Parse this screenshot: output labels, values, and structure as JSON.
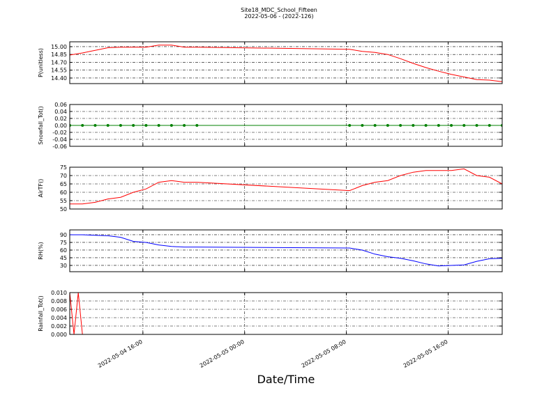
{
  "chart_data": [
    {
      "type": "line",
      "title": "Site18_MDC_School_Fifteen",
      "subtitle": "2022-05-06 - (2022-126)",
      "ylabel": "P(unitless)",
      "color": "#ff0000",
      "x": [
        "2022-05-04 10:15",
        "2022-05-04 11:15",
        "2022-05-04 12:15",
        "2022-05-04 13:15",
        "2022-05-04 14:15",
        "2022-05-04 15:15",
        "2022-05-04 16:15",
        "2022-05-04 17:15",
        "2022-05-04 18:15",
        "2022-05-04 19:15",
        "2022-05-04 20:15",
        "2022-05-05 08:15",
        "2022-05-05 09:15",
        "2022-05-05 10:15",
        "2022-05-05 11:15",
        "2022-05-05 12:15",
        "2022-05-05 13:15",
        "2022-05-05 14:15",
        "2022-05-05 15:15",
        "2022-05-05 16:15",
        "2022-05-05 17:15",
        "2022-05-05 18:15",
        "2022-05-05 19:15",
        "2022-05-05 20:15"
      ],
      "values": [
        14.84,
        14.88,
        14.93,
        14.98,
        14.99,
        14.99,
        14.99,
        15.03,
        15.03,
        14.99,
        14.99,
        14.95,
        14.91,
        14.89,
        14.85,
        14.77,
        14.68,
        14.6,
        14.53,
        14.47,
        14.42,
        14.37,
        14.36,
        14.33
      ],
      "xlim": [
        "2022-05-04 10:15",
        "2022-05-05 20:15"
      ],
      "xticks": [
        "2022-05-04 16:00",
        "2022-05-05 00:00",
        "2022-05-05 08:00",
        "2022-05-05 16:00"
      ],
      "ylim": [
        14.293,
        15.093
      ],
      "yticks": [
        {
          "value": 14.4,
          "label": "14.40"
        },
        {
          "value": 14.55,
          "label": "14.55"
        },
        {
          "value": 14.7,
          "label": "14.70"
        },
        {
          "value": 14.85,
          "label": "14.85"
        },
        {
          "value": 15.0,
          "label": "15.00"
        }
      ],
      "grid": true
    },
    {
      "type": "line",
      "ylabel": "Snowfall_Tot()",
      "color": "#008000",
      "marker": "o",
      "x": [
        "2022-05-04 10:15",
        "2022-05-04 11:15",
        "2022-05-04 12:15",
        "2022-05-04 13:15",
        "2022-05-04 14:15",
        "2022-05-04 15:15",
        "2022-05-04 16:15",
        "2022-05-04 17:15",
        "2022-05-04 18:15",
        "2022-05-04 19:15",
        "2022-05-04 20:15",
        "2022-05-05 08:15",
        "2022-05-05 09:15",
        "2022-05-05 10:15",
        "2022-05-05 11:15",
        "2022-05-05 12:15",
        "2022-05-05 13:15",
        "2022-05-05 14:15",
        "2022-05-05 15:15",
        "2022-05-05 16:15",
        "2022-05-05 17:15",
        "2022-05-05 18:15",
        "2022-05-05 19:15",
        "2022-05-05 20:15"
      ],
      "values": [
        0,
        0,
        0,
        0,
        0,
        0,
        0,
        0,
        0,
        0,
        0,
        0,
        0,
        0,
        0,
        0,
        0,
        0,
        0,
        0,
        0,
        0,
        0,
        0
      ],
      "xlim": [
        "2022-05-04 10:15",
        "2022-05-05 20:15"
      ],
      "xticks": [
        "2022-05-04 16:00",
        "2022-05-05 00:00",
        "2022-05-05 08:00",
        "2022-05-05 16:00"
      ],
      "ylim": [
        -0.06,
        0.06
      ],
      "yticks": [
        {
          "value": -0.06,
          "label": "-0.06"
        },
        {
          "value": -0.04,
          "label": "-0.04"
        },
        {
          "value": -0.02,
          "label": "-0.02"
        },
        {
          "value": 0,
          "label": "0.00"
        },
        {
          "value": 0.02,
          "label": "0.02"
        },
        {
          "value": 0.04,
          "label": "0.04"
        },
        {
          "value": 0.06,
          "label": "0.06"
        }
      ],
      "grid": true
    },
    {
      "type": "line",
      "ylabel": "AirTF()",
      "color": "#ff0000",
      "x": [
        "2022-05-04 10:15",
        "2022-05-04 11:15",
        "2022-05-04 12:15",
        "2022-05-04 13:15",
        "2022-05-04 14:15",
        "2022-05-04 15:15",
        "2022-05-04 16:15",
        "2022-05-04 17:15",
        "2022-05-04 18:15",
        "2022-05-04 19:15",
        "2022-05-04 20:15",
        "2022-05-05 08:15",
        "2022-05-05 09:15",
        "2022-05-05 10:15",
        "2022-05-05 11:15",
        "2022-05-05 12:15",
        "2022-05-05 13:15",
        "2022-05-05 14:15",
        "2022-05-05 15:15",
        "2022-05-05 16:15",
        "2022-05-05 17:15",
        "2022-05-05 18:15",
        "2022-05-05 19:15",
        "2022-05-05 20:15"
      ],
      "values": [
        53,
        53,
        54,
        56,
        57,
        60,
        62,
        66,
        67,
        66,
        66,
        61,
        64,
        66,
        67,
        70,
        72,
        73,
        73,
        73,
        74,
        70,
        69,
        65
      ],
      "xlim": [
        "2022-05-04 10:15",
        "2022-05-05 20:15"
      ],
      "xticks": [
        "2022-05-04 16:00",
        "2022-05-05 00:00",
        "2022-05-05 08:00",
        "2022-05-05 16:00"
      ],
      "ylim": [
        50,
        75
      ],
      "yticks": [
        50,
        55,
        60,
        65,
        70,
        75
      ],
      "grid": true
    },
    {
      "type": "line",
      "ylabel": "RH(%)",
      "color": "#0000ff",
      "x": [
        "2022-05-04 10:15",
        "2022-05-04 11:15",
        "2022-05-04 12:15",
        "2022-05-04 13:15",
        "2022-05-04 14:15",
        "2022-05-04 15:15",
        "2022-05-04 16:15",
        "2022-05-04 17:15",
        "2022-05-04 18:15",
        "2022-05-04 19:15",
        "2022-05-04 20:15",
        "2022-05-05 08:15",
        "2022-05-05 09:15",
        "2022-05-05 10:15",
        "2022-05-05 11:15",
        "2022-05-05 12:15",
        "2022-05-05 13:15",
        "2022-05-05 14:15",
        "2022-05-05 15:15",
        "2022-05-05 16:15",
        "2022-05-05 17:15",
        "2022-05-05 18:15",
        "2022-05-05 19:15",
        "2022-05-05 20:15"
      ],
      "values": [
        90,
        90,
        89,
        88,
        85,
        77,
        75,
        70,
        67,
        66,
        66,
        64,
        60,
        52,
        47,
        44,
        39,
        33,
        29,
        30,
        31,
        38,
        43,
        44
      ],
      "xlim": [
        "2022-05-04 10:15",
        "2022-05-05 20:15"
      ],
      "xticks": [
        "2022-05-04 16:00",
        "2022-05-05 00:00",
        "2022-05-05 08:00",
        "2022-05-05 16:00"
      ],
      "ylim": [
        17.7,
        99.5
      ],
      "yticks": [
        30,
        45,
        60,
        75,
        90
      ],
      "grid": true
    },
    {
      "type": "line",
      "ylabel": "Rainfall_Tot()",
      "xlabel": "Date/Time",
      "color": "#ff0000",
      "x": [
        "2022-05-04 10:15",
        "2022-05-04 10:35",
        "2022-05-04 10:55",
        "2022-05-04 11:15",
        "2022-05-04 12:15",
        "2022-05-04 14:15",
        "2022-05-04 16:15",
        "2022-05-04 18:15",
        "2022-05-04 20:15",
        "2022-05-05 08:15",
        "2022-05-05 10:15",
        "2022-05-05 12:15",
        "2022-05-05 14:15",
        "2022-05-05 16:15",
        "2022-05-05 18:15",
        "2022-05-05 20:15"
      ],
      "values": [
        0.01,
        0,
        0.01,
        0,
        0,
        0,
        0,
        0,
        0,
        0,
        0,
        0,
        0,
        0,
        0,
        0
      ],
      "xlim": [
        "2022-05-04 10:15",
        "2022-05-05 20:15"
      ],
      "xticks": [
        "2022-05-04 16:00",
        "2022-05-05 00:00",
        "2022-05-05 08:00",
        "2022-05-05 16:00"
      ],
      "ylim": [
        0,
        0.01
      ],
      "yticks": [
        {
          "value": 0,
          "label": "0.000"
        },
        {
          "value": 0.002,
          "label": "0.002"
        },
        {
          "value": 0.004,
          "label": "0.004"
        },
        {
          "value": 0.006,
          "label": "0.006"
        },
        {
          "value": 0.008,
          "label": "0.008"
        },
        {
          "value": 0.01,
          "label": "0.010"
        }
      ],
      "grid": true
    }
  ]
}
